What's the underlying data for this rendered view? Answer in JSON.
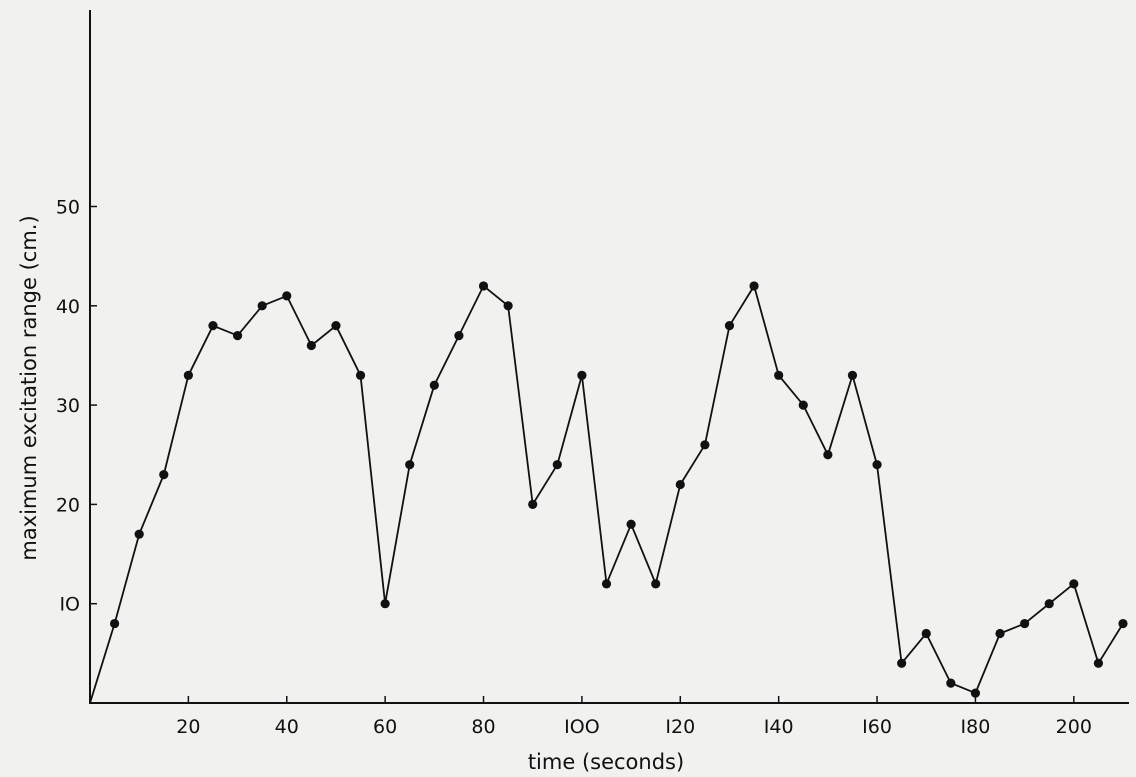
{
  "chart_data": {
    "type": "line",
    "xlabel": "time (seconds)",
    "ylabel": "maximum excitation range (cm.)",
    "xlim": [
      0,
      210
    ],
    "ylim": [
      0,
      60
    ],
    "xticks": [
      20,
      40,
      60,
      80,
      100,
      120,
      140,
      160,
      180,
      200
    ],
    "xtick_labels": [
      "20",
      "40",
      "60",
      "80",
      "IOO",
      "I20",
      "I40",
      "I60",
      "I80",
      "200"
    ],
    "yticks": [
      10,
      20,
      30,
      40,
      50
    ],
    "ytick_labels": [
      "IO",
      "20",
      "30",
      "40",
      "50"
    ],
    "grid": false,
    "series": [
      {
        "x": [
          0,
          5,
          10,
          15,
          20,
          25,
          30,
          35,
          40,
          45,
          50,
          55,
          60,
          65,
          70,
          75,
          80,
          85,
          90,
          95,
          100,
          105,
          110,
          115,
          120,
          125,
          130,
          135,
          140,
          145,
          150,
          155,
          160,
          165,
          170,
          175,
          180,
          185,
          190,
          195,
          200,
          205,
          210
        ],
        "y": [
          0,
          8,
          17,
          23,
          33,
          38,
          37,
          40,
          41,
          36,
          38,
          33,
          10,
          24,
          32,
          37,
          42,
          40,
          20,
          24,
          33,
          12,
          18,
          12,
          22,
          26,
          38,
          42,
          33,
          30,
          25,
          33,
          24,
          4,
          7,
          2,
          1,
          7,
          8,
          10,
          12,
          4,
          8
        ]
      }
    ],
    "colors": {
      "line": "#111111",
      "marker": "#111111"
    }
  }
}
